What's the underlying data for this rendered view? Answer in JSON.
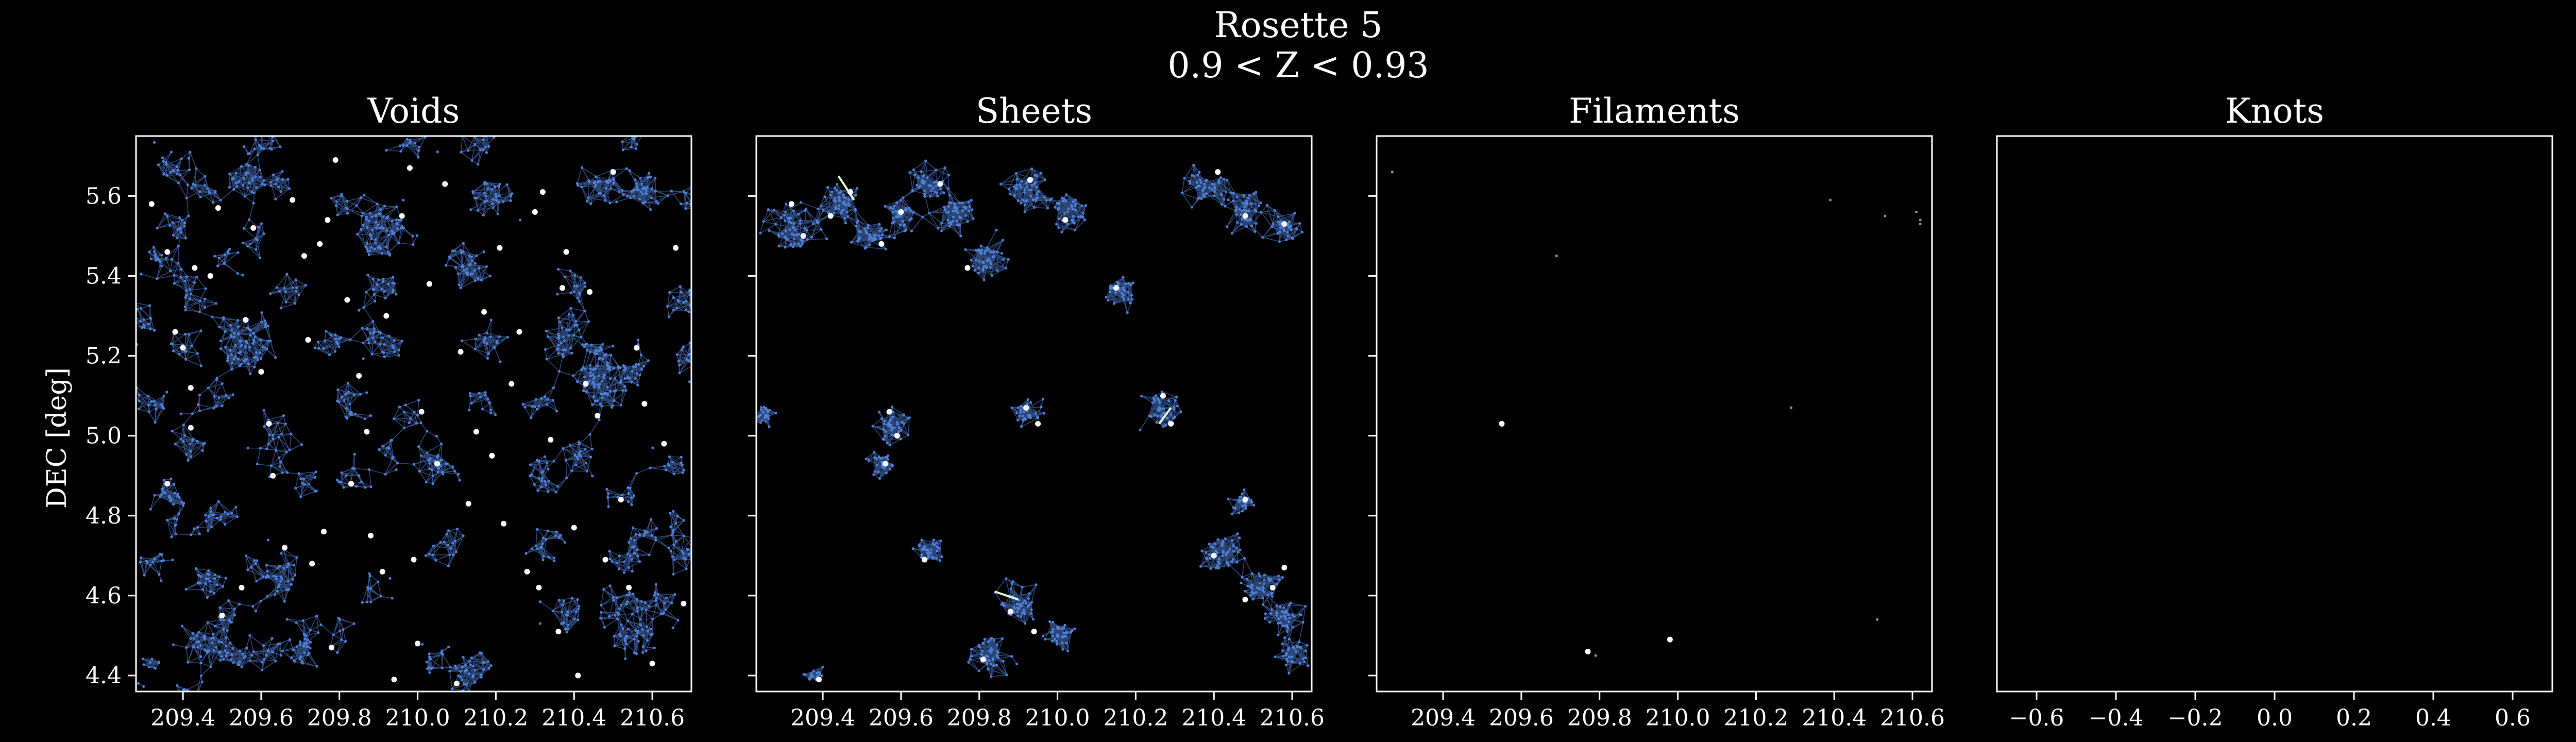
{
  "figure": {
    "title_line1": "Rosette 5",
    "title_line2": "0.9 < Z < 0.93",
    "ylabel": "DEC [deg]"
  },
  "colors": {
    "background": "#000000",
    "axes": "#ffffff",
    "galaxy_points": "#4f7fd6",
    "network_edges": "#3b5f9f",
    "critical_points": "#ffffff",
    "segments": "#e6ffd0"
  },
  "chart_data": [
    {
      "type": "scatter",
      "title": "Voids",
      "xlim": [
        209.28,
        210.7
      ],
      "ylim": [
        4.36,
        5.75
      ],
      "xticks": [
        "209.4",
        "209.6",
        "209.8",
        "210.0",
        "210.2",
        "210.4",
        "210.6"
      ],
      "yticks": [
        "4.4",
        "4.6",
        "4.8",
        "5.0",
        "5.2",
        "5.4",
        "5.6"
      ],
      "critical_points": [
        [
          209.32,
          5.58
        ],
        [
          209.36,
          5.46
        ],
        [
          209.38,
          5.26
        ],
        [
          209.4,
          5.22
        ],
        [
          209.42,
          5.12
        ],
        [
          209.43,
          5.42
        ],
        [
          209.47,
          5.4
        ],
        [
          209.49,
          5.57
        ],
        [
          209.5,
          4.55
        ],
        [
          209.42,
          5.02
        ],
        [
          209.36,
          4.88
        ],
        [
          209.55,
          4.62
        ],
        [
          209.56,
          5.29
        ],
        [
          209.58,
          5.52
        ],
        [
          209.6,
          5.16
        ],
        [
          209.62,
          5.03
        ],
        [
          209.63,
          4.9
        ],
        [
          209.66,
          4.72
        ],
        [
          209.68,
          5.59
        ],
        [
          209.71,
          5.45
        ],
        [
          209.72,
          5.24
        ],
        [
          209.73,
          4.68
        ],
        [
          209.75,
          5.48
        ],
        [
          209.76,
          4.76
        ],
        [
          209.77,
          5.54
        ],
        [
          209.78,
          4.47
        ],
        [
          209.79,
          5.69
        ],
        [
          209.82,
          5.34
        ],
        [
          209.83,
          4.88
        ],
        [
          209.85,
          5.15
        ],
        [
          209.87,
          5.01
        ],
        [
          209.88,
          4.75
        ],
        [
          209.91,
          4.66
        ],
        [
          209.92,
          5.3
        ],
        [
          209.94,
          4.39
        ],
        [
          209.96,
          5.55
        ],
        [
          209.98,
          5.67
        ],
        [
          209.99,
          4.69
        ],
        [
          210.0,
          4.48
        ],
        [
          210.01,
          5.06
        ],
        [
          210.03,
          5.38
        ],
        [
          210.05,
          4.93
        ],
        [
          210.07,
          5.63
        ],
        [
          210.1,
          4.38
        ],
        [
          210.11,
          5.21
        ],
        [
          210.13,
          4.83
        ],
        [
          210.15,
          5.01
        ],
        [
          210.17,
          5.31
        ],
        [
          210.19,
          4.95
        ],
        [
          210.21,
          5.47
        ],
        [
          210.22,
          4.78
        ],
        [
          210.24,
          5.13
        ],
        [
          210.26,
          5.26
        ],
        [
          210.28,
          4.66
        ],
        [
          210.3,
          5.56
        ],
        [
          210.31,
          4.62
        ],
        [
          210.32,
          5.61
        ],
        [
          210.34,
          4.99
        ],
        [
          210.36,
          4.51
        ],
        [
          210.37,
          5.37
        ],
        [
          210.38,
          5.46
        ],
        [
          210.4,
          4.77
        ],
        [
          210.41,
          4.4
        ],
        [
          210.43,
          5.13
        ],
        [
          210.44,
          5.36
        ],
        [
          210.46,
          5.05
        ],
        [
          210.48,
          4.69
        ],
        [
          210.5,
          5.66
        ],
        [
          210.52,
          4.84
        ],
        [
          210.54,
          4.62
        ],
        [
          210.56,
          5.22
        ],
        [
          210.58,
          5.08
        ],
        [
          210.6,
          4.43
        ],
        [
          210.63,
          4.98
        ],
        [
          210.66,
          5.47
        ],
        [
          210.68,
          4.58
        ]
      ]
    },
    {
      "type": "scatter",
      "title": "Sheets",
      "xlim": [
        209.23,
        210.65
      ],
      "ylim": [
        4.36,
        5.75
      ],
      "xticks": [
        "209.4",
        "209.6",
        "209.8",
        "210.0",
        "210.2",
        "210.4",
        "210.6"
      ],
      "yticks": [],
      "clusters": [
        [
          209.33,
          5.52,
          0.09
        ],
        [
          209.45,
          5.59,
          0.07
        ],
        [
          209.52,
          5.5,
          0.06
        ],
        [
          209.6,
          5.55,
          0.06
        ],
        [
          209.67,
          5.63,
          0.06
        ],
        [
          209.74,
          5.56,
          0.07
        ],
        [
          209.82,
          5.45,
          0.07
        ],
        [
          209.93,
          5.62,
          0.07
        ],
        [
          210.03,
          5.56,
          0.06
        ],
        [
          210.38,
          5.62,
          0.07
        ],
        [
          210.48,
          5.56,
          0.07
        ],
        [
          210.58,
          5.52,
          0.05
        ],
        [
          210.16,
          5.36,
          0.05
        ],
        [
          209.58,
          5.02,
          0.06
        ],
        [
          209.55,
          4.93,
          0.04
        ],
        [
          209.92,
          5.06,
          0.05
        ],
        [
          210.27,
          5.06,
          0.06
        ],
        [
          209.25,
          5.05,
          0.04
        ],
        [
          209.67,
          4.71,
          0.05
        ],
        [
          209.9,
          4.58,
          0.07
        ],
        [
          209.82,
          4.45,
          0.07
        ],
        [
          210.0,
          4.5,
          0.05
        ],
        [
          210.42,
          4.7,
          0.07
        ],
        [
          210.52,
          4.62,
          0.06
        ],
        [
          210.58,
          4.55,
          0.06
        ],
        [
          210.47,
          4.83,
          0.04
        ],
        [
          209.38,
          4.4,
          0.03
        ],
        [
          210.6,
          4.45,
          0.05
        ]
      ],
      "critical_points": [
        [
          209.32,
          5.58
        ],
        [
          209.35,
          5.5
        ],
        [
          209.42,
          5.55
        ],
        [
          209.47,
          5.61
        ],
        [
          209.55,
          5.48
        ],
        [
          209.6,
          5.56
        ],
        [
          209.7,
          5.63
        ],
        [
          209.77,
          5.42
        ],
        [
          209.93,
          5.64
        ],
        [
          210.02,
          5.54
        ],
        [
          210.15,
          5.37
        ],
        [
          210.41,
          5.66
        ],
        [
          210.48,
          5.55
        ],
        [
          210.58,
          5.53
        ],
        [
          209.57,
          5.06
        ],
        [
          209.59,
          5.0
        ],
        [
          209.56,
          4.93
        ],
        [
          209.92,
          5.07
        ],
        [
          209.95,
          5.03
        ],
        [
          210.27,
          5.1
        ],
        [
          210.29,
          5.03
        ],
        [
          209.66,
          4.69
        ],
        [
          209.88,
          4.56
        ],
        [
          209.94,
          4.51
        ],
        [
          209.81,
          4.44
        ],
        [
          210.4,
          4.7
        ],
        [
          210.48,
          4.59
        ],
        [
          210.55,
          4.62
        ],
        [
          210.58,
          4.67
        ],
        [
          210.48,
          4.84
        ],
        [
          209.39,
          4.39
        ]
      ],
      "segments": [
        [
          [
            209.44,
            5.65
          ],
          [
            209.48,
            5.59
          ]
        ],
        [
          [
            209.84,
            4.61
          ],
          [
            209.9,
            4.59
          ]
        ],
        [
          [
            210.26,
            5.03
          ],
          [
            210.29,
            5.07
          ]
        ]
      ]
    },
    {
      "type": "scatter",
      "title": "Filaments",
      "xlim": [
        209.23,
        210.65
      ],
      "ylim": [
        4.36,
        5.75
      ],
      "xticks": [
        "209.4",
        "209.6",
        "209.8",
        "210.0",
        "210.2",
        "210.4",
        "210.6"
      ],
      "yticks": [],
      "critical_points": [
        [
          209.55,
          5.03
        ],
        [
          209.77,
          4.46
        ],
        [
          209.98,
          4.49
        ]
      ],
      "faint_points": [
        [
          209.27,
          5.66
        ],
        [
          209.69,
          5.45
        ],
        [
          210.29,
          5.07
        ],
        [
          210.39,
          5.59
        ],
        [
          210.53,
          5.55
        ],
        [
          210.61,
          5.56
        ],
        [
          210.62,
          5.54
        ],
        [
          210.62,
          5.53
        ],
        [
          210.51,
          4.54
        ],
        [
          209.79,
          4.45
        ]
      ]
    },
    {
      "type": "scatter",
      "title": "Knots",
      "xlim": [
        -0.7,
        0.7
      ],
      "ylim": [
        -0.7,
        0.7
      ],
      "xticks": [
        "−0.6",
        "−0.4",
        "−0.2",
        "0.0",
        "0.2",
        "0.4",
        "0.6"
      ],
      "yticks": [],
      "critical_points": []
    }
  ]
}
